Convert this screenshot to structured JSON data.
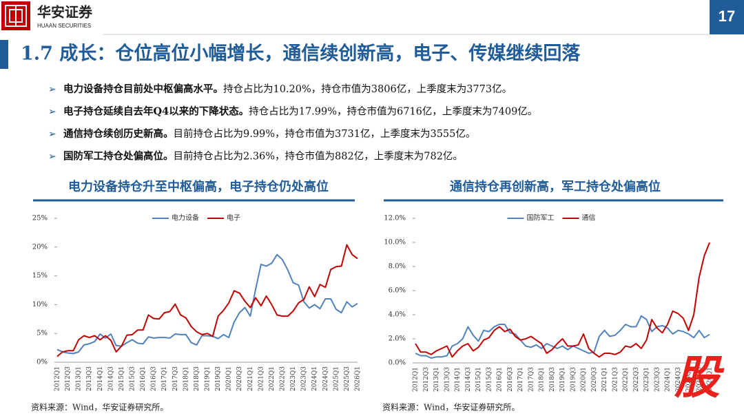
{
  "header": {
    "logo_cn": "华安证券",
    "logo_en": "HUAAN SECURITIES",
    "page": "17",
    "title": "1.7 成长：仓位高位小幅增长，通信续创新高，电子、传媒继续回落"
  },
  "bullets": [
    {
      "bold": "电力设备持仓目前处中枢偏高水平。",
      "text": "持仓占比为10.20%，持仓市值为3806亿，上季度末为3773亿。"
    },
    {
      "bold": "电子持仓延续自去年Q4以来的下降状态。",
      "text": "持仓占比为17.99%，持仓市值为6716亿，上季度末为7409亿。"
    },
    {
      "bold": "通信持仓续创历史新高。",
      "text": "目前持仓占比为9.99%，持仓市值为3731亿，上季度末为3555亿。"
    },
    {
      "bold": "国防军工持仓处偏高位。",
      "text": "目前持仓占比为2.36%，持仓市值为882亿，上季度末为782亿。"
    }
  ],
  "chart_data": [
    {
      "type": "line",
      "title": "电力设备持仓升至中枢偏高，电子持仓仍处高位",
      "legend": "top",
      "categories": [
        "2012Q1",
        null,
        "2012Q3",
        null,
        "2013Q1",
        null,
        "2013Q3",
        null,
        "2014Q1",
        null,
        "2014Q3",
        null,
        "2015Q1",
        null,
        "2015Q3",
        null,
        "2016Q1",
        null,
        "2016Q3",
        null,
        "2017Q1",
        null,
        "2017Q3",
        null,
        "2018Q1",
        null,
        "2018Q3",
        null,
        "2019Q1",
        null,
        "2019Q3",
        null,
        "2020Q1",
        null,
        "2020Q3",
        null,
        "2021Q1",
        null,
        "2021Q3",
        null,
        "2022Q1",
        null,
        "2022Q3",
        null,
        "2023Q1",
        null,
        "2023Q3",
        null,
        "2024Q1",
        null,
        "2024Q3",
        null,
        "2025Q1",
        null,
        "2025Q3",
        null,
        "2026Q1"
      ],
      "series": [
        {
          "name": "电力设备",
          "color": "#4f81bd",
          "values": [
            2.2,
            1.8,
            1.6,
            1.5,
            1.8,
            3.0,
            3.2,
            3.6,
            4.9,
            4.2,
            4.9,
            2.9,
            2.8,
            3.4,
            3.9,
            3.3,
            3.2,
            4.4,
            4.2,
            4.3,
            4.3,
            4.2,
            4.9,
            4.8,
            4.8,
            3.4,
            3.0,
            4.6,
            4.6,
            4.5,
            4.1,
            4.8,
            4.3,
            7.0,
            8.6,
            9.5,
            8.0,
            12.7,
            17.0,
            16.7,
            17.2,
            18.7,
            17.8,
            16.0,
            13.8,
            13.4,
            10.5,
            9.4,
            10.0,
            9.3,
            11.0,
            11.0,
            9.2,
            8.6,
            10.5,
            9.6,
            10.2
          ]
        },
        {
          "name": "电子",
          "color": "#c00000",
          "values": [
            1.0,
            1.8,
            2.0,
            2.0,
            3.9,
            4.6,
            4.3,
            4.6,
            3.9,
            4.6,
            3.8,
            1.8,
            2.8,
            4.7,
            4.8,
            5.6,
            5.6,
            8.2,
            7.6,
            7.5,
            8.6,
            8.8,
            10.1,
            8.2,
            7.7,
            6.2,
            5.3,
            4.8,
            5.0,
            4.5,
            8.0,
            9.0,
            10.3,
            12.4,
            12.0,
            10.6,
            9.5,
            11.2,
            9.8,
            11.5,
            10.0,
            8.2,
            8.0,
            8.0,
            8.9,
            10.3,
            10.9,
            13.1,
            11.4,
            13.5,
            13.0,
            16.1,
            16.6,
            16.7,
            20.4,
            18.7,
            17.99
          ]
        }
      ],
      "ylim": [
        0,
        25
      ],
      "yticks": [
        {
          "value": 0,
          "label": "0%"
        },
        {
          "value": 5,
          "label": "5%"
        },
        {
          "value": 10,
          "label": "10%"
        },
        {
          "value": 15,
          "label": "15%"
        },
        {
          "value": 20,
          "label": "20%"
        },
        {
          "value": 25,
          "label": "25%"
        }
      ],
      "source": "资料来源：Wind，华安证券研究所。"
    },
    {
      "type": "line",
      "title": "通信持仓再创新高，军工持仓处偏高位",
      "legend": "top",
      "categories": [
        "2012Q1",
        null,
        "2012Q3",
        null,
        "2013Q1",
        null,
        "2013Q3",
        null,
        "2014Q1",
        null,
        "2014Q3",
        null,
        "2015Q1",
        null,
        "2015Q3",
        null,
        "2016Q1",
        null,
        "2016Q3",
        null,
        "2017Q1",
        null,
        "2017Q3",
        null,
        "2018Q1",
        null,
        "2018Q3",
        null,
        "2019Q1",
        null,
        "2019Q3",
        null,
        "2020Q1",
        null,
        "2020Q3",
        null,
        "2021Q1",
        null,
        "2021Q3",
        null,
        "2022Q1",
        null,
        "2022Q3",
        null,
        "2023Q1",
        null,
        "2023Q3",
        null,
        "2024Q1",
        null,
        "2024Q3",
        null,
        "2025Q1",
        null,
        "2025Q3",
        null,
        "2026Q1"
      ],
      "series": [
        {
          "name": "国防军工",
          "color": "#4f81bd",
          "values": [
            0.8,
            0.6,
            0.6,
            0.4,
            0.5,
            0.5,
            0.6,
            1.4,
            1.6,
            2.0,
            3.0,
            2.3,
            1.8,
            2.7,
            2.6,
            3.0,
            3.2,
            3.2,
            2.5,
            2.4,
            1.9,
            1.4,
            1.3,
            1.5,
            1.2,
            1.6,
            1.4,
            1.2,
            1.4,
            1.1,
            1.4,
            1.2,
            1.0,
            0.8,
            0.9,
            2.2,
            2.7,
            2.2,
            2.3,
            2.7,
            3.2,
            3.0,
            3.0,
            3.9,
            3.6,
            2.6,
            3.0,
            3.1,
            2.9,
            2.4,
            2.7,
            2.6,
            2.4,
            2.1,
            2.7,
            2.1,
            2.36
          ]
        },
        {
          "name": "通信",
          "color": "#c00000",
          "values": [
            1.6,
            0.9,
            0.9,
            0.7,
            1.0,
            1.2,
            1.4,
            0.5,
            1.0,
            1.4,
            1.6,
            1.0,
            1.3,
            1.9,
            2.1,
            2.7,
            3.0,
            2.6,
            2.8,
            2.2,
            1.9,
            2.0,
            2.2,
            1.9,
            1.6,
            0.8,
            1.1,
            1.6,
            2.0,
            1.4,
            1.4,
            1.5,
            2.4,
            1.2,
            0.8,
            0.5,
            0.8,
            0.8,
            0.7,
            0.9,
            1.4,
            1.3,
            1.6,
            1.2,
            1.9,
            3.6,
            2.9,
            2.5,
            3.2,
            4.3,
            4.1,
            3.7,
            2.7,
            4.0,
            7.1,
            8.9,
            9.99
          ]
        }
      ],
      "ylim": [
        0,
        12
      ],
      "yticks": [
        {
          "value": 0,
          "label": "0.0%"
        },
        {
          "value": 2,
          "label": "2.0%"
        },
        {
          "value": 4,
          "label": "4.0%"
        },
        {
          "value": 6,
          "label": "6.0%"
        },
        {
          "value": 8,
          "label": "8.0%"
        },
        {
          "value": 10,
          "label": "10.0%"
        },
        {
          "value": 12,
          "label": "12.0%"
        }
      ],
      "source": "资料来源：Wind，华安证券研究所。"
    }
  ],
  "watermark": "股"
}
